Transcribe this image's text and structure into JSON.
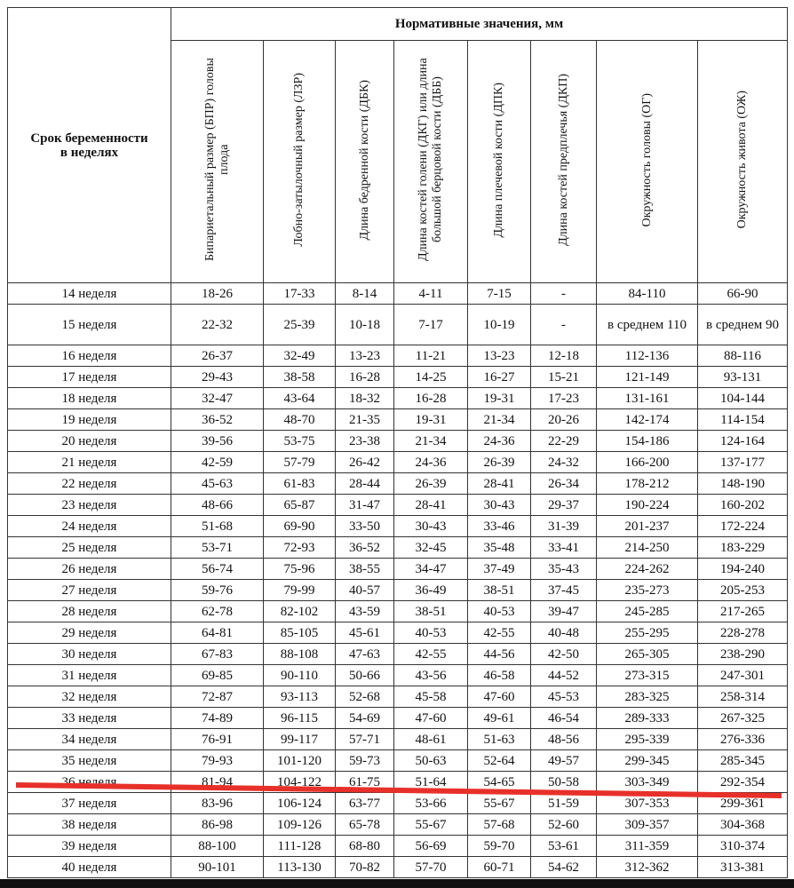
{
  "header": {
    "period_label": "Срок беременности в неделях",
    "title": "Нормативные значения, мм"
  },
  "table": {
    "columns": [
      "Бипариетальный размер (БПР) головы плода",
      "Лобно-затылочный размер (ЛЗР)",
      "Длина бедренной кости (ДБК)",
      "Длина костей голени (ДКГ) или длина большой берцовой кости (ДББ)",
      "Длина плечевой кости (ДПК)",
      "Длина костей предплечья (ДКП)",
      "Окружность головы (ОГ)",
      "Окружность живота (ОЖ)"
    ],
    "rows": [
      [
        "14 неделя",
        "18-26",
        "17-33",
        "8-14",
        "4-11",
        "7-15",
        "-",
        "84-110",
        "66-90"
      ],
      [
        "15 неделя",
        "22-32",
        "25-39",
        "10-18",
        "7-17",
        "10-19",
        "-",
        "в среднем 110",
        "в среднем 90"
      ],
      [
        "16 неделя",
        "26-37",
        "32-49",
        "13-23",
        "11-21",
        "13-23",
        "12-18",
        "112-136",
        "88-116"
      ],
      [
        "17 неделя",
        "29-43",
        "38-58",
        "16-28",
        "14-25",
        "16-27",
        "15-21",
        "121-149",
        "93-131"
      ],
      [
        "18 неделя",
        "32-47",
        "43-64",
        "18-32",
        "16-28",
        "19-31",
        "17-23",
        "131-161",
        "104-144"
      ],
      [
        "19 неделя",
        "36-52",
        "48-70",
        "21-35",
        "19-31",
        "21-34",
        "20-26",
        "142-174",
        "114-154"
      ],
      [
        "20 неделя",
        "39-56",
        "53-75",
        "23-38",
        "21-34",
        "24-36",
        "22-29",
        "154-186",
        "124-164"
      ],
      [
        "21 неделя",
        "42-59",
        "57-79",
        "26-42",
        "24-36",
        "26-39",
        "24-32",
        "166-200",
        "137-177"
      ],
      [
        "22 неделя",
        "45-63",
        "61-83",
        "28-44",
        "26-39",
        "28-41",
        "26-34",
        "178-212",
        "148-190"
      ],
      [
        "23 неделя",
        "48-66",
        "65-87",
        "31-47",
        "28-41",
        "30-43",
        "29-37",
        "190-224",
        "160-202"
      ],
      [
        "24 неделя",
        "51-68",
        "69-90",
        "33-50",
        "30-43",
        "33-46",
        "31-39",
        "201-237",
        "172-224"
      ],
      [
        "25 неделя",
        "53-71",
        "72-93",
        "36-52",
        "32-45",
        "35-48",
        "33-41",
        "214-250",
        "183-229"
      ],
      [
        "26 неделя",
        "56-74",
        "75-96",
        "38-55",
        "34-47",
        "37-49",
        "35-43",
        "224-262",
        "194-240"
      ],
      [
        "27 неделя",
        "59-76",
        "79-99",
        "40-57",
        "36-49",
        "38-51",
        "37-45",
        "235-273",
        "205-253"
      ],
      [
        "28 неделя",
        "62-78",
        "82-102",
        "43-59",
        "38-51",
        "40-53",
        "39-47",
        "245-285",
        "217-265"
      ],
      [
        "29 неделя",
        "64-81",
        "85-105",
        "45-61",
        "40-53",
        "42-55",
        "40-48",
        "255-295",
        "228-278"
      ],
      [
        "30 неделя",
        "67-83",
        "88-108",
        "47-63",
        "42-55",
        "44-56",
        "42-50",
        "265-305",
        "238-290"
      ],
      [
        "31 неделя",
        "69-85",
        "90-110",
        "50-66",
        "43-56",
        "46-58",
        "44-52",
        "273-315",
        "247-301"
      ],
      [
        "32 неделя",
        "72-87",
        "93-113",
        "52-68",
        "45-58",
        "47-60",
        "45-53",
        "283-325",
        "258-314"
      ],
      [
        "33 неделя",
        "74-89",
        "96-115",
        "54-69",
        "47-60",
        "49-61",
        "46-54",
        "289-333",
        "267-325"
      ],
      [
        "34 неделя",
        "76-91",
        "99-117",
        "57-71",
        "48-61",
        "51-63",
        "48-56",
        "295-339",
        "276-336"
      ],
      [
        "35 неделя",
        "79-93",
        "101-120",
        "59-73",
        "50-63",
        "52-64",
        "49-57",
        "299-345",
        "285-345"
      ],
      [
        "36 неделя",
        "81-94",
        "104-122",
        "61-75",
        "51-64",
        "54-65",
        "50-58",
        "303-349",
        "292-354"
      ],
      [
        "37 неделя",
        "83-96",
        "106-124",
        "63-77",
        "53-66",
        "55-67",
        "51-59",
        "307-353",
        "299-361"
      ],
      [
        "38 неделя",
        "86-98",
        "109-126",
        "65-78",
        "55-67",
        "57-68",
        "52-60",
        "309-357",
        "304-368"
      ],
      [
        "39 неделя",
        "88-100",
        "111-128",
        "68-80",
        "56-69",
        "59-70",
        "53-61",
        "311-359",
        "310-374"
      ],
      [
        "40 неделя",
        "90-101",
        "113-130",
        "70-82",
        "57-70",
        "60-71",
        "54-62",
        "312-362",
        "313-381"
      ]
    ]
  }
}
